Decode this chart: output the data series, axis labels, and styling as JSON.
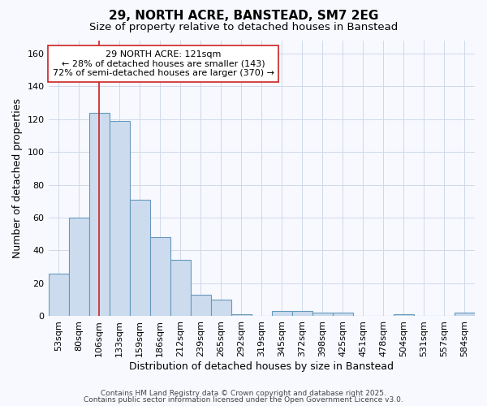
{
  "title": "29, NORTH ACRE, BANSTEAD, SM7 2EG",
  "subtitle": "Size of property relative to detached houses in Banstead",
  "xlabel": "Distribution of detached houses by size in Banstead",
  "ylabel": "Number of detached properties",
  "categories": [
    "53sqm",
    "80sqm",
    "106sqm",
    "133sqm",
    "159sqm",
    "186sqm",
    "212sqm",
    "239sqm",
    "265sqm",
    "292sqm",
    "319sqm",
    "345sqm",
    "372sqm",
    "398sqm",
    "425sqm",
    "451sqm",
    "478sqm",
    "504sqm",
    "531sqm",
    "557sqm",
    "584sqm"
  ],
  "values": [
    26,
    60,
    124,
    119,
    71,
    48,
    34,
    13,
    10,
    1,
    0,
    3,
    3,
    2,
    2,
    0,
    0,
    1,
    0,
    0,
    2
  ],
  "bar_color": "#ccdcee",
  "bar_edge_color": "#6699bb",
  "vline_x_idx": 2,
  "vline_color": "#cc2222",
  "annotation_text": "29 NORTH ACRE: 121sqm\n← 28% of detached houses are smaller (143)\n72% of semi-detached houses are larger (370) →",
  "annotation_box_facecolor": "#ffffff",
  "annotation_box_edgecolor": "#cc2222",
  "ylim": [
    0,
    168
  ],
  "yticks": [
    0,
    20,
    40,
    60,
    80,
    100,
    120,
    140,
    160
  ],
  "bg_color": "#f7f9ff",
  "plot_bg_color": "#f7f9ff",
  "grid_color": "#d0d8e8",
  "title_fontsize": 11,
  "subtitle_fontsize": 9.5,
  "tick_fontsize": 8,
  "label_fontsize": 9,
  "ylabel_fontsize": 9,
  "annotation_fontsize": 8,
  "footer1": "Contains HM Land Registry data © Crown copyright and database right 2025.",
  "footer2": "Contains public sector information licensed under the Open Government Licence v3.0."
}
